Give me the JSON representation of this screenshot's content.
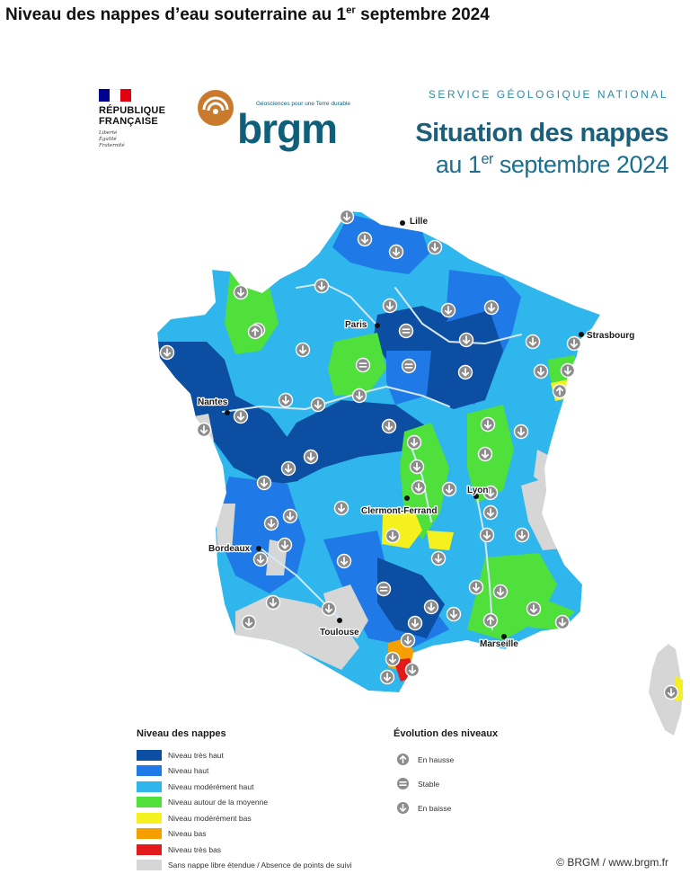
{
  "title_prefix": "Niveau des nappes d’eau souterraine au 1",
  "title_sup": "er",
  "title_suffix": " septembre 2024",
  "logos": {
    "rf_name": "RÉPUBLIQUE\nFRANÇAISE",
    "rf_motto": "Liberté\nÉgalité\nFraternité",
    "brgm_name": "brgm",
    "brgm_tagline": "Géosciences pour une Terre durable"
  },
  "header": {
    "service": "SERVICE GÉOLOGIQUE NATIONAL",
    "heading": "Situation des nappes",
    "subtitle_prefix": "au 1",
    "subtitle_sup": "er",
    "subtitle_suffix": " septembre 2024"
  },
  "colors": {
    "tres_haut": "#0b4ea2",
    "haut": "#1f79e6",
    "moderement_haut": "#2fb6ec",
    "moyenne": "#4fe03c",
    "moderement_bas": "#f4f11e",
    "bas": "#f5a000",
    "tres_bas": "#e31a1c",
    "absence": "#d6d6d6",
    "river": "#d4e7f4",
    "arrow": "#8c8c8c"
  },
  "cities": [
    {
      "name": "Lille"
    },
    {
      "name": "Paris"
    },
    {
      "name": "Strasbourg"
    },
    {
      "name": "Nantes"
    },
    {
      "name": "Clermont-Ferrand"
    },
    {
      "name": "Lyon"
    },
    {
      "name": "Bordeaux"
    },
    {
      "name": "Toulouse"
    },
    {
      "name": "Marseille"
    }
  ],
  "legend": {
    "title": "Niveau des nappes",
    "items": [
      {
        "label": "Niveau très haut",
        "color": "#0b4ea2"
      },
      {
        "label": "Niveau haut",
        "color": "#1f79e6"
      },
      {
        "label": "Niveau modérément haut",
        "color": "#2fb6ec"
      },
      {
        "label": "Niveau autour de la moyenne",
        "color": "#4fe03c"
      },
      {
        "label": "Niveau modérément bas",
        "color": "#f4f11e"
      },
      {
        "label": "Niveau bas",
        "color": "#f5a000"
      },
      {
        "label": "Niveau très bas",
        "color": "#e31a1c"
      },
      {
        "label": "Sans nappe libre étendue / Absence de points de suivi",
        "color": "#d6d6d6"
      }
    ]
  },
  "evolution": {
    "title": "Évolution des niveaux",
    "items": [
      {
        "label": "En hausse",
        "icon": "arrow-up-icon"
      },
      {
        "label": "Stable",
        "icon": "equals-icon"
      },
      {
        "label": "En baisse",
        "icon": "arrow-down-icon"
      }
    ]
  },
  "credit": "© BRGM / www.brgm.fr"
}
